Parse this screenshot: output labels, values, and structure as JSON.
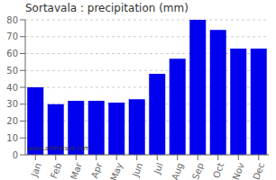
{
  "chart_data": {
    "type": "bar",
    "title": "Sortavala : precipitation (mm)",
    "categories": [
      "Jan",
      "Feb",
      "Mar",
      "Apr",
      "May",
      "Jun",
      "Jul",
      "Aug",
      "Sep",
      "Oct",
      "Nov",
      "Dec"
    ],
    "values": [
      40,
      30,
      32,
      32,
      31,
      33,
      48,
      57,
      80,
      74,
      63,
      63
    ],
    "color": "#0000EE",
    "ylim": [
      0,
      80
    ],
    "yticks": [
      0,
      10,
      20,
      30,
      40,
      50,
      60,
      70,
      80
    ],
    "grid": true,
    "annotations": [
      "www.allmetsat.com"
    ]
  }
}
